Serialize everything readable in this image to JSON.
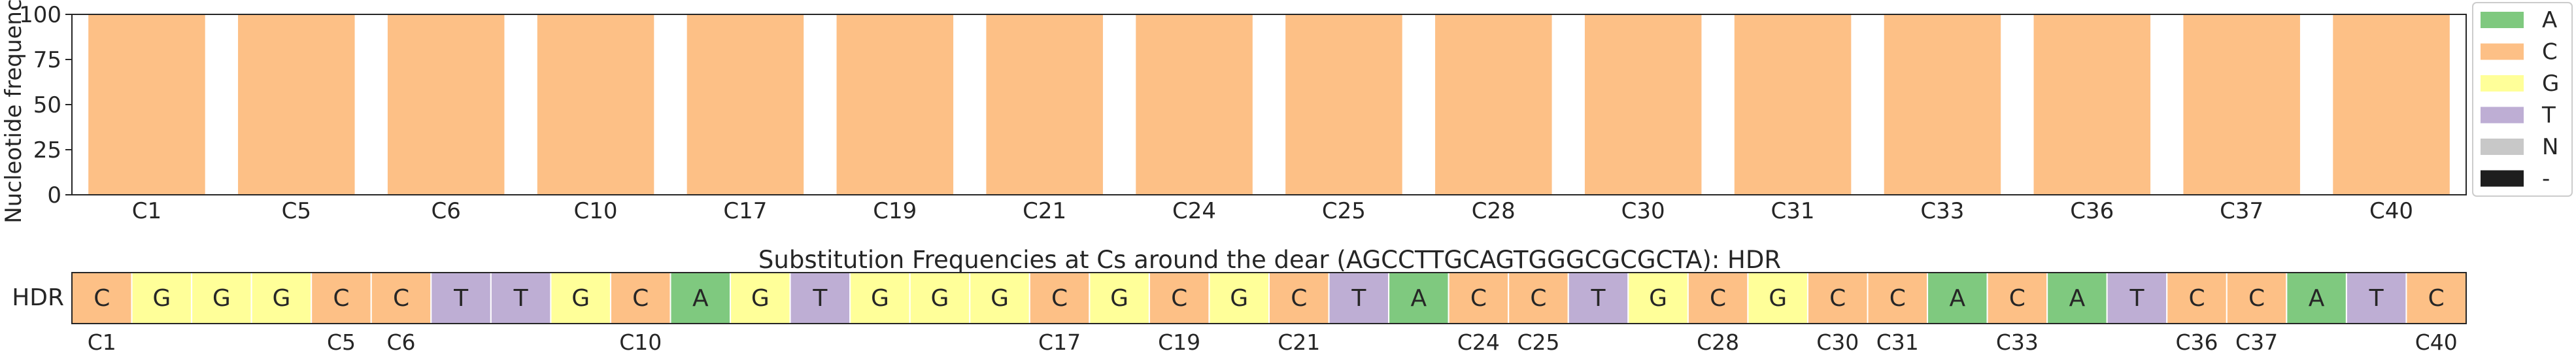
{
  "chart_data": [
    {
      "type": "bar",
      "stacked": true,
      "ylabel": "Nucleotide frequency",
      "ylim": [
        0,
        100
      ],
      "yticks": [
        0,
        25,
        50,
        75,
        100
      ],
      "grid": false,
      "legend_position": "right",
      "categories": [
        "C1",
        "C5",
        "C6",
        "C10",
        "C17",
        "C19",
        "C21",
        "C24",
        "C25",
        "C28",
        "C30",
        "C31",
        "C33",
        "C36",
        "C37",
        "C40"
      ],
      "series": [
        {
          "name": "A",
          "color": "#7fc97f",
          "values": [
            0,
            0,
            0,
            0,
            0,
            0,
            0,
            0,
            0,
            0,
            0,
            0,
            0,
            0,
            0,
            0
          ]
        },
        {
          "name": "C",
          "color": "#fdc086",
          "values": [
            100,
            100,
            100,
            100,
            100,
            100,
            100,
            100,
            100,
            100,
            100,
            100,
            100,
            100,
            100,
            100
          ]
        },
        {
          "name": "G",
          "color": "#ffff99",
          "values": [
            0,
            0,
            0,
            0,
            0,
            0,
            0,
            0,
            0,
            0,
            0,
            0,
            0,
            0,
            0,
            0
          ]
        },
        {
          "name": "T",
          "color": "#beaed4",
          "values": [
            0,
            0,
            0,
            0,
            0,
            0,
            0,
            0,
            0,
            0,
            0,
            0,
            0,
            0,
            0,
            0
          ]
        },
        {
          "name": "N",
          "color": "#c8c8c8",
          "values": [
            0,
            0,
            0,
            0,
            0,
            0,
            0,
            0,
            0,
            0,
            0,
            0,
            0,
            0,
            0,
            0
          ]
        },
        {
          "name": "-",
          "color": "#1e1e1e",
          "values": [
            0,
            0,
            0,
            0,
            0,
            0,
            0,
            0,
            0,
            0,
            0,
            0,
            0,
            0,
            0,
            0
          ]
        }
      ]
    },
    {
      "type": "table",
      "title": "Substitution Frequencies at Cs around the dear (AGCCTTGCAGTGGGCGCGCTA): HDR",
      "row_label": "HDR",
      "sequence": [
        "C",
        "G",
        "G",
        "G",
        "C",
        "C",
        "T",
        "T",
        "G",
        "C",
        "A",
        "G",
        "T",
        "G",
        "G",
        "G",
        "C",
        "G",
        "C",
        "G",
        "C",
        "T",
        "A",
        "C",
        "C",
        "T",
        "G",
        "C",
        "G",
        "C",
        "C",
        "A",
        "C",
        "A",
        "T",
        "C",
        "C",
        "A",
        "T",
        "C"
      ],
      "c_labels": [
        {
          "pos": 1,
          "label": "C1"
        },
        {
          "pos": 5,
          "label": "C5"
        },
        {
          "pos": 6,
          "label": "C6"
        },
        {
          "pos": 10,
          "label": "C10"
        },
        {
          "pos": 17,
          "label": "C17"
        },
        {
          "pos": 19,
          "label": "C19"
        },
        {
          "pos": 21,
          "label": "C21"
        },
        {
          "pos": 24,
          "label": "C24"
        },
        {
          "pos": 25,
          "label": "C25"
        },
        {
          "pos": 28,
          "label": "C28"
        },
        {
          "pos": 30,
          "label": "C30"
        },
        {
          "pos": 31,
          "label": "C31"
        },
        {
          "pos": 33,
          "label": "C33"
        },
        {
          "pos": 36,
          "label": "C36"
        },
        {
          "pos": 37,
          "label": "C37"
        },
        {
          "pos": 40,
          "label": "C40"
        }
      ],
      "base_colors": {
        "A": "#7fc97f",
        "C": "#fdc086",
        "G": "#ffff99",
        "T": "#beaed4",
        "N": "#c8c8c8",
        "-": "#1e1e1e"
      }
    }
  ]
}
